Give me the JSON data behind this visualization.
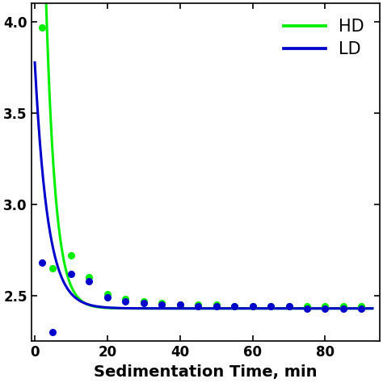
{
  "title": "",
  "xlabel": "Sedimentation Time, min",
  "ylabel": "",
  "xlim": [
    -1,
    95
  ],
  "ylim": [
    2.25,
    4.1
  ],
  "yticks": [
    2.5,
    3.0,
    3.5,
    4.0
  ],
  "xticks": [
    0,
    20,
    40,
    60,
    80
  ],
  "legend_labels": [
    "HD",
    "LD"
  ],
  "hd_color": "#00ee00",
  "ld_color": "#0000cc",
  "background_color": "#ffffff",
  "linewidth": 2.2,
  "markersize": 6.5,
  "legend_fontsize": 15,
  "axis_fontsize": 14,
  "tick_fontsize": 12,
  "hd_pts_x": [
    2,
    5,
    10,
    15,
    20,
    25,
    30,
    35,
    40,
    45,
    50,
    55,
    60,
    65,
    70,
    75,
    80,
    85,
    90
  ],
  "hd_pts_y": [
    3.97,
    2.65,
    2.72,
    2.6,
    2.51,
    2.48,
    2.47,
    2.46,
    2.45,
    2.45,
    2.45,
    2.44,
    2.44,
    2.44,
    2.44,
    2.44,
    2.44,
    2.44,
    2.44
  ],
  "ld_pts_x": [
    2,
    5,
    10,
    15,
    20,
    25,
    30,
    35,
    40,
    45,
    50,
    55,
    60,
    65,
    70,
    75,
    80,
    85,
    90
  ],
  "ld_pts_y": [
    2.68,
    2.3,
    2.62,
    2.58,
    2.49,
    2.47,
    2.46,
    2.45,
    2.45,
    2.44,
    2.44,
    2.44,
    2.44,
    2.44,
    2.44,
    2.43,
    2.43,
    2.43,
    2.43
  ],
  "hd_curve_a": 5.5,
  "hd_curve_b": 0.38,
  "hd_curve_c": 2.43,
  "ld_curve_a": 1.35,
  "ld_curve_b": 0.28,
  "ld_curve_c": 2.43
}
